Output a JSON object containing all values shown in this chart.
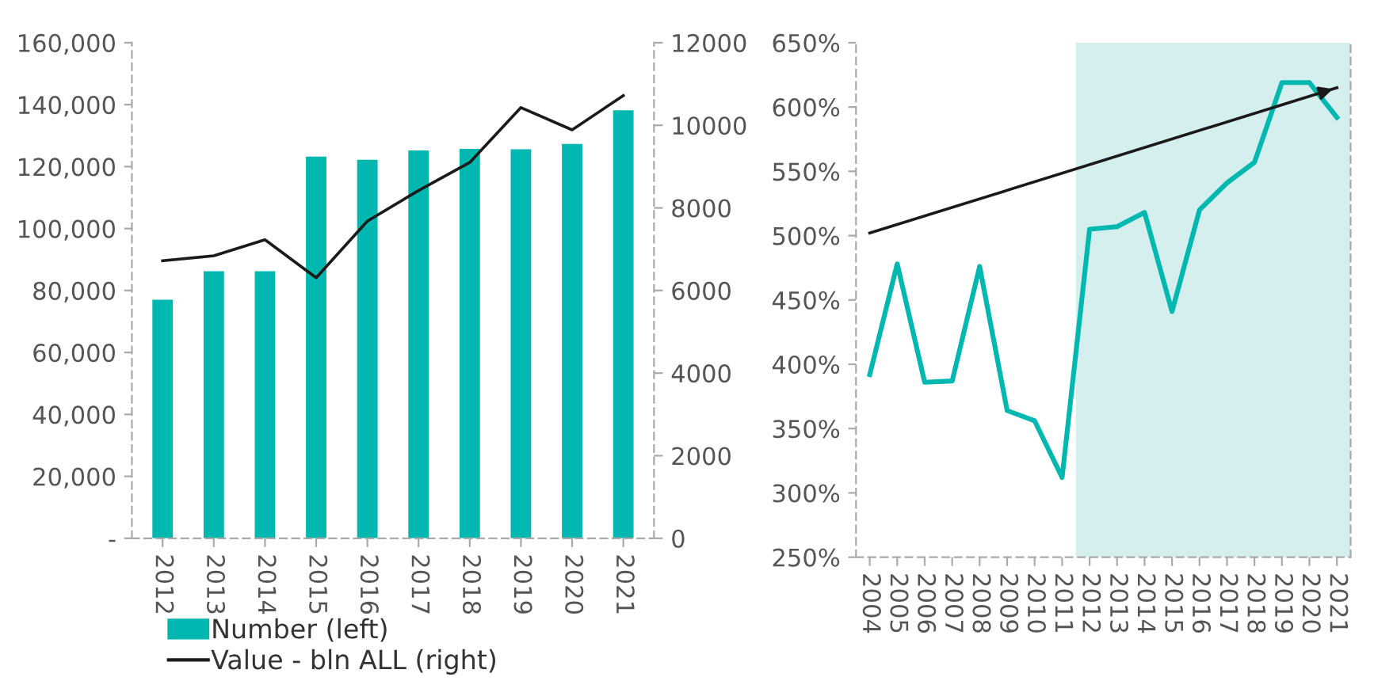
{
  "chart_data": [
    {
      "type": "bar",
      "categories": [
        "2012",
        "2013",
        "2014",
        "2015",
        "2016",
        "2017",
        "2018",
        "2019",
        "2020",
        "2021"
      ],
      "series": [
        {
          "name": "Number (left)",
          "color": "#00b8b0",
          "values": [
            77000,
            86200,
            86200,
            123200,
            122200,
            125200,
            125700,
            125600,
            127300,
            138200
          ]
        },
        {
          "name": "Value - bln ALL (right)",
          "type": "line",
          "axis": "y2",
          "color": "#1a1a1a",
          "values": [
            6720,
            6840,
            7230,
            6310,
            7680,
            8420,
            9100,
            10430,
            9890,
            10720
          ]
        }
      ],
      "ylim": [
        0,
        160000
      ],
      "yticks": [
        {
          "value": 0,
          "label": "-"
        },
        {
          "value": 20000,
          "label": "20,000"
        },
        {
          "value": 40000,
          "label": "40,000"
        },
        {
          "value": 60000,
          "label": "60,000"
        },
        {
          "value": 80000,
          "label": "80,000"
        },
        {
          "value": 100000,
          "label": "100,000"
        },
        {
          "value": 120000,
          "label": "120,000"
        },
        {
          "value": 140000,
          "label": "140,000"
        },
        {
          "value": 160000,
          "label": "160,000"
        }
      ],
      "y2lim": [
        0,
        12000
      ],
      "y2ticks": [
        0,
        2000,
        4000,
        6000,
        8000,
        10000,
        12000
      ],
      "grid": false,
      "legend": "bottom left"
    },
    {
      "type": "line",
      "series": [
        {
          "color": "#00b8b0",
          "x": [
            2004,
            2005,
            2006,
            2007,
            2008,
            2009,
            2010,
            2011,
            2012,
            2013,
            2014,
            2015,
            2016,
            2017,
            2018,
            2019,
            2020,
            2021
          ],
          "values": [
            392,
            478,
            386,
            387,
            476,
            364,
            356,
            312,
            505,
            507,
            518,
            441,
            520,
            541,
            557,
            619,
            619,
            592
          ]
        },
        {
          "color": "#1a1a1a",
          "x": [
            2004,
            2021
          ],
          "values": [
            502,
            615
          ]
        }
      ],
      "xlim": [
        2003.5,
        2021.5
      ],
      "xticks": [
        2004,
        2005,
        2006,
        2007,
        2008,
        2009,
        2010,
        2011,
        2012,
        2013,
        2014,
        2015,
        2016,
        2017,
        2018,
        2019,
        2020,
        2021
      ],
      "ylim": [
        250,
        650
      ],
      "yticks": [
        {
          "value": 250,
          "label": "250%"
        },
        {
          "value": 300,
          "label": "300%"
        },
        {
          "value": 350,
          "label": "350%"
        },
        {
          "value": 400,
          "label": "400%"
        },
        {
          "value": 450,
          "label": "450%"
        },
        {
          "value": 500,
          "label": "500%"
        },
        {
          "value": 550,
          "label": "550%"
        },
        {
          "value": 600,
          "label": "600%"
        },
        {
          "value": 650,
          "label": "650%"
        }
      ],
      "bands": [
        {
          "axis": "x",
          "from": 2011.5,
          "to": 2021.5,
          "color": "#d5eeee"
        }
      ],
      "grid": false,
      "legend": false
    }
  ]
}
